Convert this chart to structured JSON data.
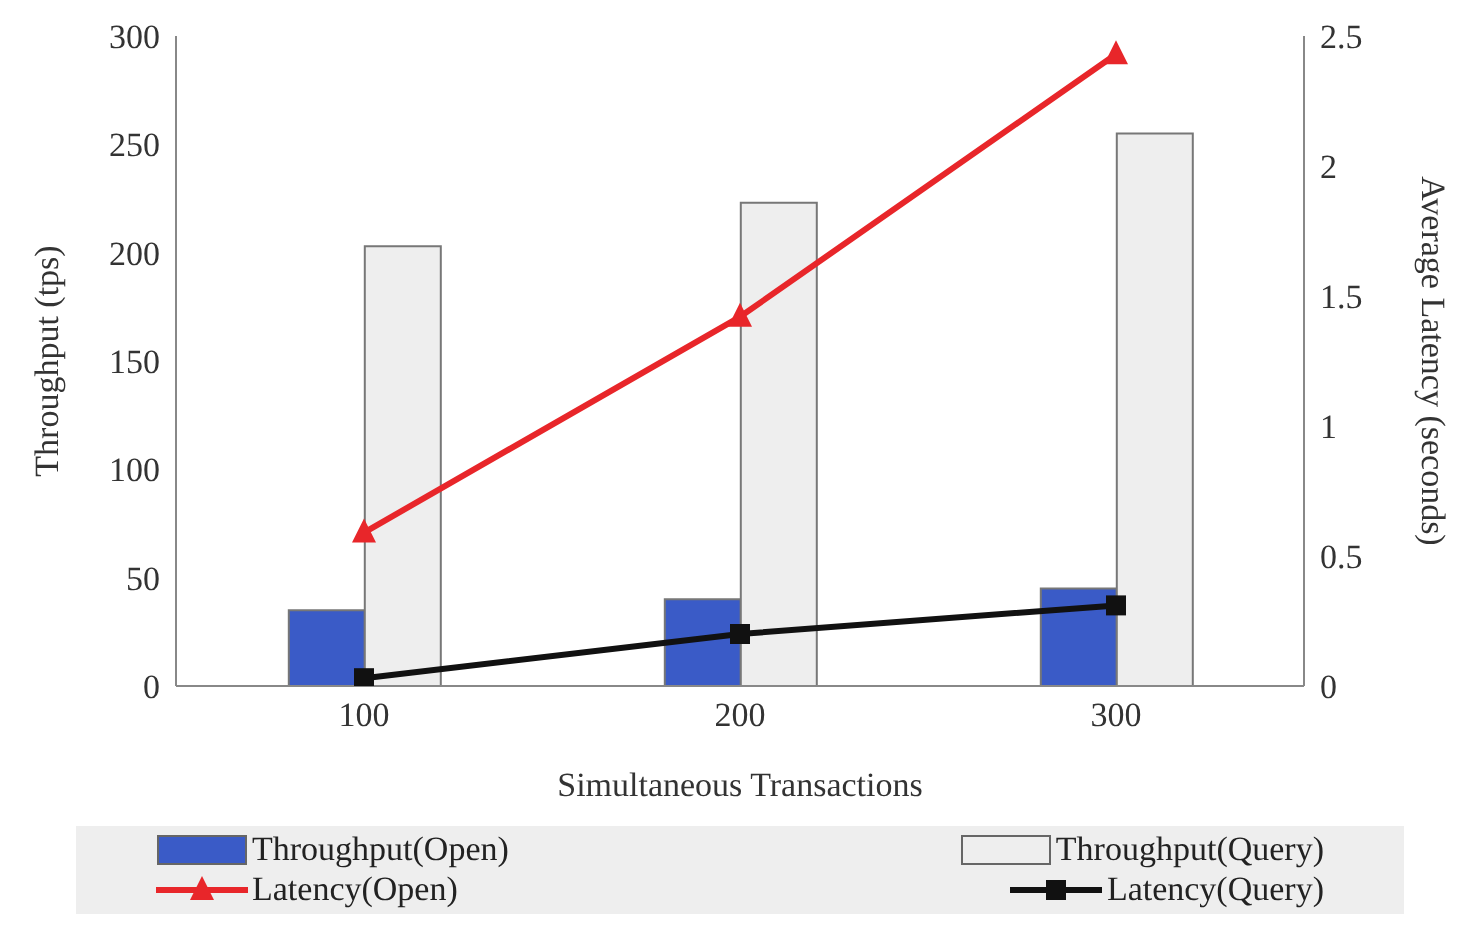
{
  "chart_data": {
    "type": "bar",
    "xlabel": "Simultaneous Transactions",
    "ylabel": "Throughput (tps)",
    "y2label": "Average Latency (seconds)",
    "categories": [
      "100",
      "200",
      "300"
    ],
    "series": [
      {
        "name": "Throughput(Open)",
        "color": "#3a5bc7",
        "values": [
          35,
          40,
          45
        ]
      },
      {
        "name": "Throughput(Query)",
        "color": "#eeeeee",
        "values": [
          203,
          223,
          255
        ]
      },
      {
        "name": "Latency(Open)",
        "type": "line",
        "axis": "y2",
        "marker": "triangle",
        "color": "#e8262a",
        "values": [
          0.59,
          1.42,
          2.43
        ]
      },
      {
        "name": "Latency(Query)",
        "type": "line",
        "axis": "y2",
        "marker": "square",
        "color": "#111111",
        "values": [
          0.03,
          0.2,
          0.31
        ]
      }
    ],
    "ylim": [
      0,
      300
    ],
    "yticks": [
      0,
      50,
      100,
      150,
      200,
      250,
      300
    ],
    "y2lim": [
      0,
      2.5
    ],
    "y2ticks": [
      0,
      0.5,
      1,
      1.5,
      2,
      2.5
    ],
    "grid": false,
    "legend": "bottom"
  }
}
